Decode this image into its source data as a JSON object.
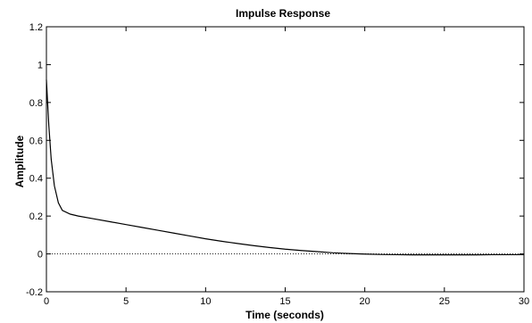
{
  "chart_data": {
    "type": "line",
    "title": "Impulse Response",
    "xlabel": "Time (seconds)",
    "ylabel": "Amplitude",
    "xlim": [
      0,
      30
    ],
    "ylim": [
      -0.2,
      1.2
    ],
    "x_ticks": [
      "0",
      "5",
      "10",
      "15",
      "20",
      "25",
      "30"
    ],
    "y_ticks": [
      "-0.2",
      "0",
      "0.2",
      "0.4",
      "0.6",
      "0.8",
      "1",
      "1.2"
    ],
    "grid": false,
    "zero_reference_line": true,
    "series": [
      {
        "color": "#000000",
        "x": [
          0,
          0.15,
          0.3,
          0.5,
          0.75,
          1.0,
          1.5,
          2,
          3,
          4,
          5,
          6,
          7,
          8,
          9,
          10,
          11,
          12,
          13,
          14,
          15,
          16,
          17,
          18,
          19,
          20,
          21,
          22,
          23,
          24,
          25,
          26,
          27,
          28,
          29,
          30
        ],
        "y": [
          0.92,
          0.68,
          0.5,
          0.36,
          0.27,
          0.23,
          0.21,
          0.2,
          0.185,
          0.17,
          0.155,
          0.14,
          0.125,
          0.11,
          0.095,
          0.08,
          0.067,
          0.055,
          0.044,
          0.034,
          0.025,
          0.018,
          0.012,
          0.006,
          0.002,
          -0.001,
          -0.003,
          -0.004,
          -0.005,
          -0.005,
          -0.005,
          -0.005,
          -0.005,
          -0.004,
          -0.004,
          -0.004
        ]
      }
    ]
  }
}
